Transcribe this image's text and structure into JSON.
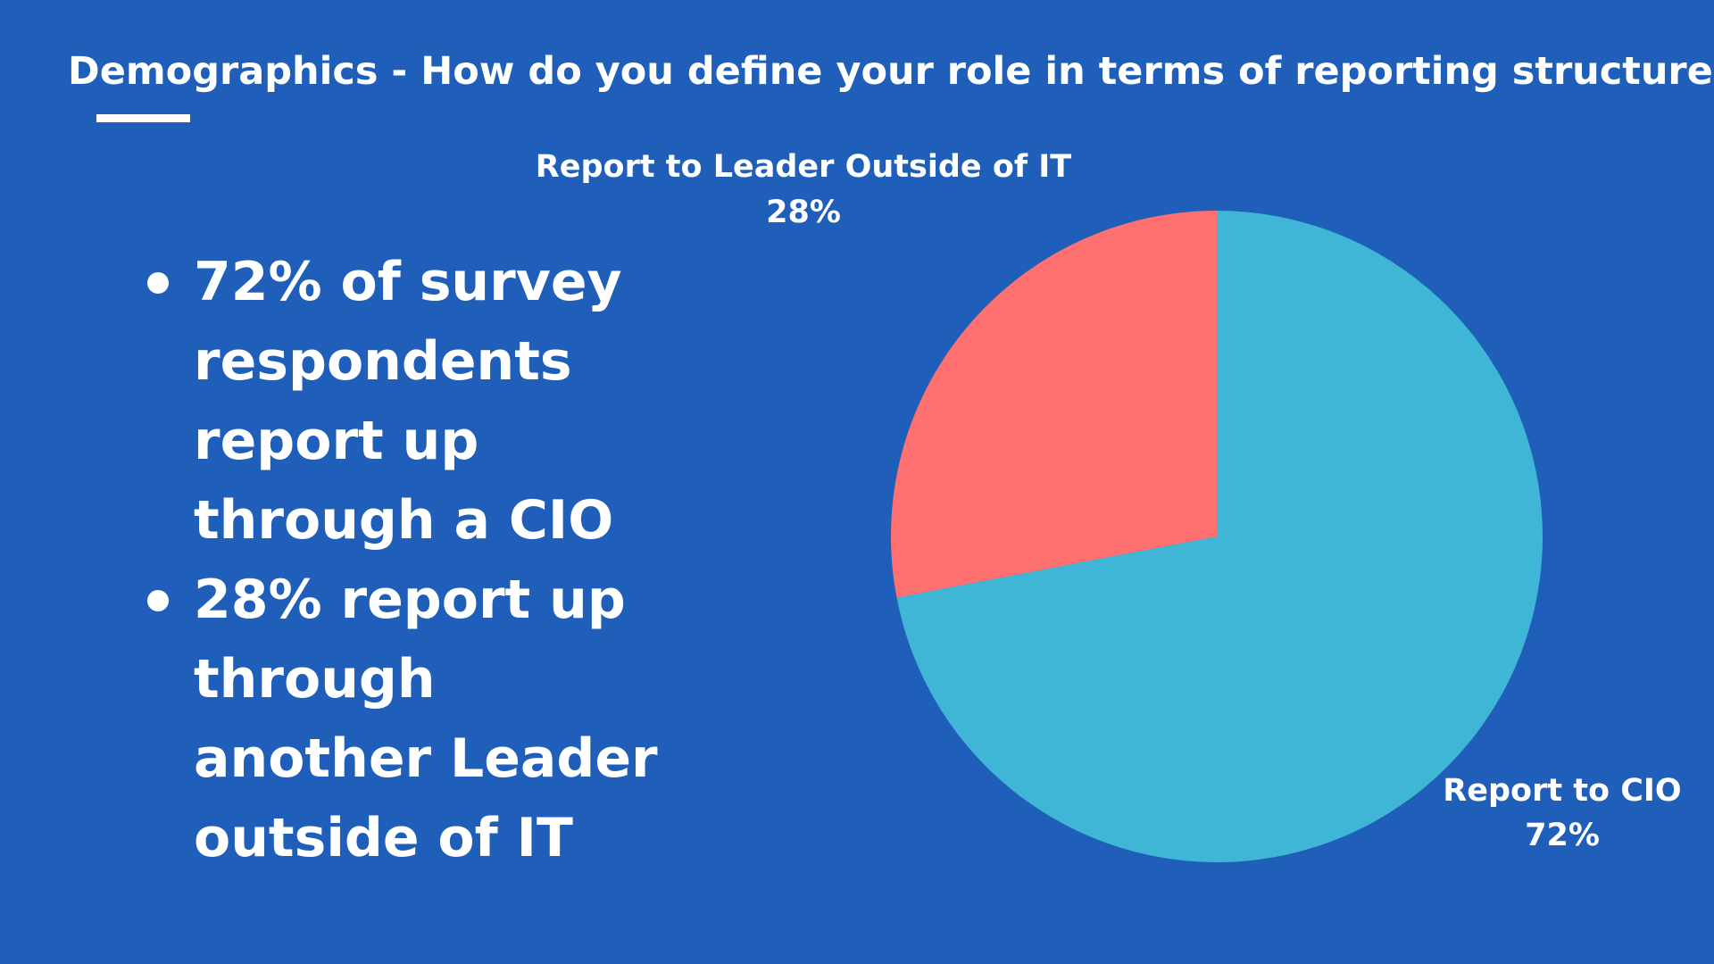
{
  "title": "Demographics -  How do you define your role in terms of reporting structure?",
  "bullets": [
    "72% of survey respondents report up through a CIO",
    "28% report  up through another Leader outside of IT"
  ],
  "colors": {
    "background": "#1f5fba",
    "cio": "#40b6d6",
    "outside_it": "#ff7170",
    "text": "#ffffff"
  },
  "chart_data": {
    "type": "pie",
    "title": "",
    "slices": [
      {
        "label": "Report to CIO",
        "value": 72,
        "display": "72%",
        "color": "#40b6d6"
      },
      {
        "label": "Report to Leader Outside of IT",
        "value": 28,
        "display": "28%",
        "color": "#ff7170"
      }
    ],
    "start": "12 o'clock",
    "direction": "clockwise",
    "legend": "none"
  }
}
